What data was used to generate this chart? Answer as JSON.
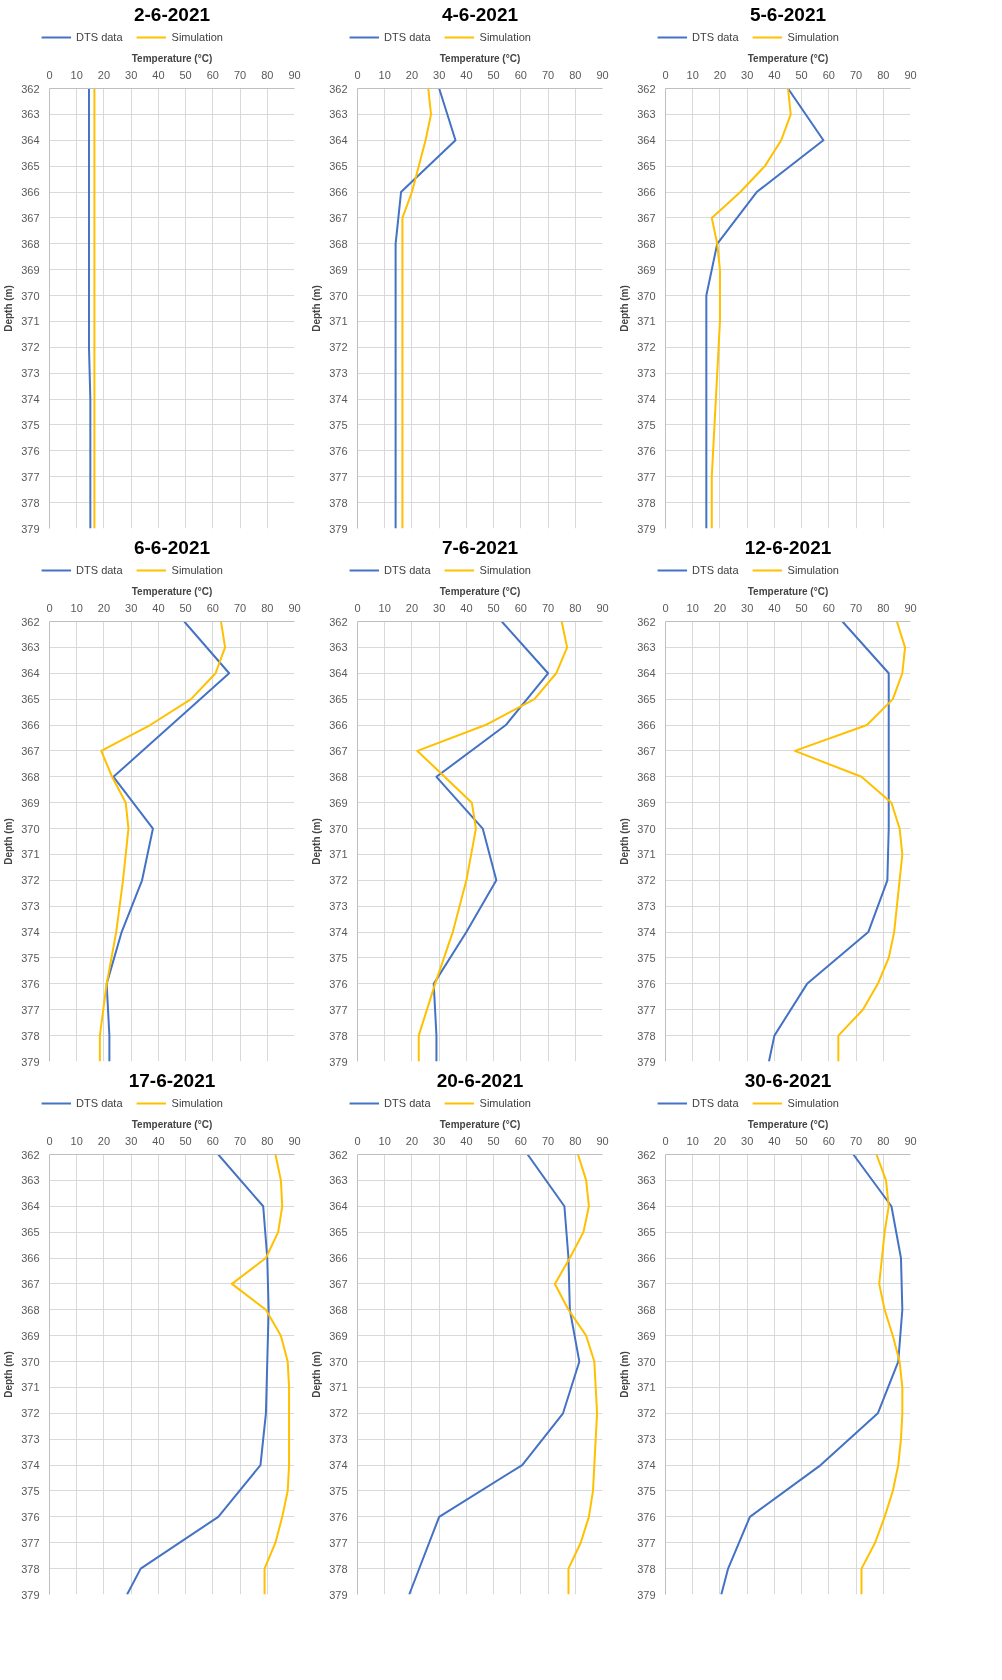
{
  "chart_data": [
    {
      "type": "line",
      "title": "2-6-2021",
      "xlabel": "Temperature (°C)",
      "ylabel": "Depth (m)",
      "orientation": "horizontal",
      "xlim": [
        0,
        90
      ],
      "xticks": [
        0,
        10,
        20,
        30,
        40,
        50,
        60,
        70,
        80,
        90
      ],
      "ylim": [
        379,
        362
      ],
      "yticks": [
        362,
        363,
        364,
        365,
        366,
        367,
        368,
        369,
        370,
        371,
        372,
        373,
        374,
        375,
        376,
        377,
        378,
        379
      ],
      "grid": true,
      "legend": "top",
      "series": [
        {
          "name": "DTS data",
          "color": "#4472c4",
          "x": [
            362,
            364,
            366,
            368,
            370,
            372,
            374,
            376,
            378,
            379
          ],
          "values": [
            14.5,
            14.5,
            14.5,
            14.5,
            14.5,
            14.5,
            15,
            15,
            15,
            15
          ]
        },
        {
          "name": "Simulation",
          "color": "#ffc000",
          "x": [
            362,
            364,
            366,
            368,
            370,
            372,
            374,
            376,
            378,
            379
          ],
          "values": [
            16.5,
            16.5,
            16.5,
            16.5,
            16.5,
            16.5,
            16.5,
            16.5,
            16.5,
            16.5
          ]
        }
      ]
    },
    {
      "type": "line",
      "title": "4-6-2021",
      "xlabel": "Temperature (°C)",
      "ylabel": "Depth (m)",
      "orientation": "horizontal",
      "xlim": [
        0,
        90
      ],
      "xticks": [
        0,
        10,
        20,
        30,
        40,
        50,
        60,
        70,
        80,
        90
      ],
      "ylim": [
        379,
        362
      ],
      "yticks": [
        362,
        363,
        364,
        365,
        366,
        367,
        368,
        369,
        370,
        371,
        372,
        373,
        374,
        375,
        376,
        377,
        378,
        379
      ],
      "grid": true,
      "legend": "top",
      "series": [
        {
          "name": "DTS data",
          "color": "#4472c4",
          "x": [
            362,
            364,
            366,
            368,
            370,
            372,
            374,
            376,
            378,
            379
          ],
          "values": [
            30,
            36,
            16,
            14,
            14,
            14,
            14,
            14,
            14,
            14
          ]
        },
        {
          "name": "Simulation",
          "color": "#ffc000",
          "x": [
            362,
            363,
            364,
            365,
            366,
            367,
            368,
            370,
            372,
            374,
            376,
            378,
            379
          ],
          "values": [
            26,
            27,
            25,
            22.5,
            20,
            16.5,
            16.5,
            16.5,
            16.5,
            16.5,
            16.5,
            16.5,
            16.5
          ]
        }
      ]
    },
    {
      "type": "line",
      "title": "5-6-2021",
      "xlabel": "Temperature (°C)",
      "ylabel": "Depth (m)",
      "orientation": "horizontal",
      "xlim": [
        0,
        90
      ],
      "xticks": [
        0,
        10,
        20,
        30,
        40,
        50,
        60,
        70,
        80,
        90
      ],
      "ylim": [
        379,
        362
      ],
      "yticks": [
        362,
        363,
        364,
        365,
        366,
        367,
        368,
        369,
        370,
        371,
        372,
        373,
        374,
        375,
        376,
        377,
        378,
        379
      ],
      "grid": true,
      "legend": "top",
      "series": [
        {
          "name": "DTS data",
          "color": "#4472c4",
          "x": [
            362,
            364,
            366,
            368,
            370,
            372,
            374,
            376,
            378,
            379
          ],
          "values": [
            45,
            58,
            33.5,
            19,
            15,
            15,
            15,
            15,
            15,
            15
          ]
        },
        {
          "name": "Simulation",
          "color": "#ffc000",
          "x": [
            362,
            363,
            364,
            365,
            366,
            367,
            368,
            369,
            370,
            371,
            372,
            373,
            374,
            375,
            376,
            377,
            378,
            379
          ],
          "values": [
            45,
            46,
            42.5,
            36.5,
            27.5,
            17,
            19,
            20,
            20,
            20,
            19.5,
            19,
            18.5,
            18,
            17.5,
            17,
            17,
            17
          ]
        }
      ]
    },
    {
      "type": "line",
      "title": "6-6-2021",
      "xlabel": "Temperature (°C)",
      "ylabel": "Depth (m)",
      "orientation": "horizontal",
      "xlim": [
        0,
        90
      ],
      "xticks": [
        0,
        10,
        20,
        30,
        40,
        50,
        60,
        70,
        80,
        90
      ],
      "ylim": [
        379,
        362
      ],
      "yticks": [
        362,
        363,
        364,
        365,
        366,
        367,
        368,
        369,
        370,
        371,
        372,
        373,
        374,
        375,
        376,
        377,
        378,
        379
      ],
      "grid": true,
      "legend": "top",
      "series": [
        {
          "name": "DTS data",
          "color": "#4472c4",
          "x": [
            362,
            364,
            368,
            370,
            372,
            374,
            376,
            378,
            379
          ],
          "values": [
            49.5,
            66,
            23.5,
            38,
            34,
            26.5,
            21,
            22,
            22
          ]
        },
        {
          "name": "Simulation",
          "color": "#ffc000",
          "x": [
            362,
            363,
            364,
            365,
            366,
            367,
            368,
            369,
            370,
            372,
            374,
            376,
            378,
            379
          ],
          "values": [
            63,
            64.5,
            61,
            52,
            37,
            19,
            23,
            28,
            29,
            27,
            24.5,
            21,
            18.5,
            18.5
          ]
        }
      ]
    },
    {
      "type": "line",
      "title": "7-6-2021",
      "xlabel": "Temperature (°C)",
      "ylabel": "Depth (m)",
      "orientation": "horizontal",
      "xlim": [
        0,
        90
      ],
      "xticks": [
        0,
        10,
        20,
        30,
        40,
        50,
        60,
        70,
        80,
        90
      ],
      "ylim": [
        379,
        362
      ],
      "yticks": [
        362,
        363,
        364,
        365,
        366,
        367,
        368,
        369,
        370,
        371,
        372,
        373,
        374,
        375,
        376,
        377,
        378,
        379
      ],
      "grid": true,
      "legend": "top",
      "series": [
        {
          "name": "DTS data",
          "color": "#4472c4",
          "x": [
            362,
            364,
            366,
            368,
            370,
            372,
            374,
            376,
            378,
            379
          ],
          "values": [
            53,
            70,
            54.5,
            29,
            46,
            51,
            40,
            28,
            29,
            29
          ]
        },
        {
          "name": "Simulation",
          "color": "#ffc000",
          "x": [
            362,
            363,
            364,
            365,
            366,
            367,
            368,
            369,
            370,
            372,
            374,
            376,
            378,
            379
          ],
          "values": [
            75,
            77,
            73,
            65,
            47,
            22,
            32,
            42,
            43.5,
            40,
            35,
            28.5,
            22.5,
            22.5
          ]
        }
      ]
    },
    {
      "type": "line",
      "title": "12-6-2021",
      "xlabel": "Temperature (°C)",
      "ylabel": "Depth (m)",
      "orientation": "horizontal",
      "xlim": [
        0,
        90
      ],
      "xticks": [
        0,
        10,
        20,
        30,
        40,
        50,
        60,
        70,
        80,
        90
      ],
      "ylim": [
        379,
        362
      ],
      "yticks": [
        362,
        363,
        364,
        365,
        366,
        367,
        368,
        369,
        370,
        371,
        372,
        373,
        374,
        375,
        376,
        377,
        378,
        379
      ],
      "grid": true,
      "legend": "top",
      "series": [
        {
          "name": "DTS data",
          "color": "#4472c4",
          "x": [
            362,
            364,
            366,
            368,
            370,
            372,
            374,
            376,
            378,
            379
          ],
          "values": [
            65,
            82,
            82,
            82,
            82,
            81.5,
            74.5,
            52,
            40,
            38
          ]
        },
        {
          "name": "Simulation",
          "color": "#ffc000",
          "x": [
            362,
            363,
            364,
            365,
            366,
            367,
            368,
            369,
            370,
            371,
            372,
            373,
            374,
            375,
            376,
            377,
            378,
            379
          ],
          "values": [
            85,
            88,
            87,
            83.5,
            74,
            47.5,
            72,
            83,
            86,
            87,
            86,
            85,
            84,
            82,
            78,
            72.5,
            63.5,
            63.5
          ]
        }
      ]
    },
    {
      "type": "line",
      "title": "17-6-2021",
      "xlabel": "Temperature (°C)",
      "ylabel": "Depth (m)",
      "orientation": "horizontal",
      "xlim": [
        0,
        90
      ],
      "xticks": [
        0,
        10,
        20,
        30,
        40,
        50,
        60,
        70,
        80,
        90
      ],
      "ylim": [
        379,
        362
      ],
      "yticks": [
        362,
        363,
        364,
        365,
        366,
        367,
        368,
        369,
        370,
        371,
        372,
        373,
        374,
        375,
        376,
        377,
        378,
        379
      ],
      "grid": true,
      "legend": "top",
      "series": [
        {
          "name": "DTS data",
          "color": "#4472c4",
          "x": [
            362,
            364,
            366,
            368,
            370,
            372,
            374,
            376,
            378,
            379
          ],
          "values": [
            62,
            78.5,
            80,
            80.5,
            80,
            79.5,
            77.5,
            62,
            33.5,
            28.5
          ]
        },
        {
          "name": "Simulation",
          "color": "#ffc000",
          "x": [
            362,
            363,
            364,
            365,
            366,
            367,
            368,
            369,
            370,
            371,
            372,
            373,
            374,
            375,
            376,
            377,
            378,
            379
          ],
          "values": [
            83,
            85,
            85.5,
            84,
            79.5,
            67,
            79.5,
            85,
            87.5,
            88,
            88,
            88,
            88,
            87.5,
            85.5,
            83,
            79,
            79
          ]
        }
      ]
    },
    {
      "type": "line",
      "title": "20-6-2021",
      "xlabel": "Temperature (°C)",
      "ylabel": "Depth (m)",
      "orientation": "horizontal",
      "xlim": [
        0,
        90
      ],
      "xticks": [
        0,
        10,
        20,
        30,
        40,
        50,
        60,
        70,
        80,
        90
      ],
      "ylim": [
        379,
        362
      ],
      "yticks": [
        362,
        363,
        364,
        365,
        366,
        367,
        368,
        369,
        370,
        371,
        372,
        373,
        374,
        375,
        376,
        377,
        378,
        379
      ],
      "grid": true,
      "legend": "top",
      "series": [
        {
          "name": "DTS data",
          "color": "#4472c4",
          "x": [
            362,
            364,
            366,
            368,
            370,
            372,
            374,
            376,
            379
          ],
          "values": [
            62.5,
            76,
            77.5,
            78,
            81.5,
            75.5,
            60.5,
            30,
            19
          ]
        },
        {
          "name": "Simulation",
          "color": "#ffc000",
          "x": [
            362,
            363,
            364,
            365,
            366,
            367,
            368,
            369,
            370,
            371,
            372,
            373,
            374,
            375,
            376,
            377,
            378,
            379
          ],
          "values": [
            81,
            84,
            85,
            83,
            78,
            72.5,
            77.5,
            84,
            87,
            87.5,
            88,
            87.5,
            87,
            86.5,
            85,
            82,
            77.5,
            77.5
          ]
        }
      ]
    },
    {
      "type": "line",
      "title": "30-6-2021",
      "xlabel": "Temperature (°C)",
      "ylabel": "Depth (m)",
      "orientation": "horizontal",
      "xlim": [
        0,
        90
      ],
      "xticks": [
        0,
        10,
        20,
        30,
        40,
        50,
        60,
        70,
        80,
        90
      ],
      "ylim": [
        379,
        362
      ],
      "yticks": [
        362,
        363,
        364,
        365,
        366,
        367,
        368,
        369,
        370,
        371,
        372,
        373,
        374,
        375,
        376,
        377,
        378,
        379
      ],
      "grid": true,
      "legend": "top",
      "series": [
        {
          "name": "DTS data",
          "color": "#4472c4",
          "x": [
            362,
            364,
            366,
            368,
            370,
            372,
            374,
            376,
            378,
            379
          ],
          "values": [
            69,
            83,
            86.5,
            87,
            85.5,
            78,
            57,
            31,
            23,
            20.5
          ]
        },
        {
          "name": "Simulation",
          "color": "#ffc000",
          "x": [
            362,
            363,
            364,
            365,
            366,
            367,
            368,
            369,
            370,
            371,
            372,
            373,
            374,
            375,
            376,
            377,
            378,
            379
          ],
          "values": [
            77.5,
            81,
            82,
            80.5,
            79.5,
            78.5,
            80.5,
            83.5,
            86,
            87,
            87,
            86.5,
            85.5,
            83.5,
            80.5,
            77,
            72,
            72
          ]
        }
      ]
    }
  ]
}
